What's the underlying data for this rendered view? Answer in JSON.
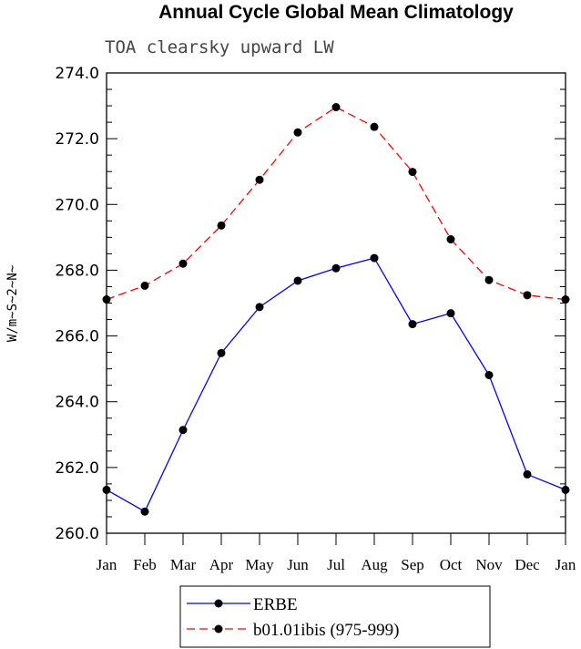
{
  "chart_data": {
    "type": "line",
    "title": "Annual Cycle Global Mean Climatology",
    "subtitle": "TOA clearsky upward LW",
    "xlabel": "",
    "ylabel": "W/m~S~2~N~",
    "categories": [
      "Jan",
      "Feb",
      "Mar",
      "Apr",
      "May",
      "Jun",
      "Jul",
      "Aug",
      "Sep",
      "Oct",
      "Nov",
      "Dec",
      "Jan"
    ],
    "ylim": [
      260,
      274
    ],
    "yticks": [
      "260.0",
      "262.0",
      "264.0",
      "266.0",
      "268.0",
      "270.0",
      "272.0",
      "274.0"
    ],
    "grid": false,
    "legend_placement": "bottom",
    "series": [
      {
        "name": "ERBE",
        "color": "#0000ff",
        "dash": "solid",
        "marker": "filled-circle",
        "values": [
          261.32,
          260.66,
          263.14,
          265.48,
          266.88,
          267.68,
          268.06,
          268.37,
          266.36,
          266.69,
          264.81,
          261.79,
          261.32
        ]
      },
      {
        "name": "b01.01ibis (975-999)",
        "color": "#ff0000",
        "dash": "dashed",
        "marker": "filled-circle",
        "values": [
          267.11,
          267.53,
          268.2,
          269.36,
          270.75,
          272.19,
          272.96,
          272.36,
          270.99,
          268.94,
          267.7,
          267.24,
          267.11
        ]
      }
    ]
  }
}
